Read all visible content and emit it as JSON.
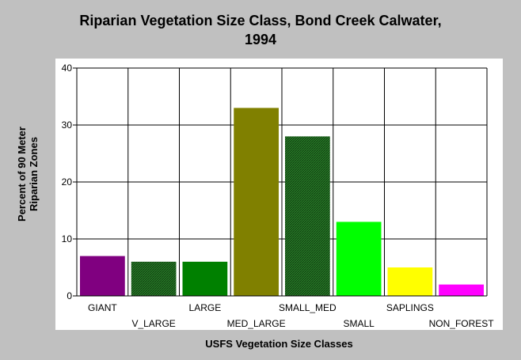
{
  "title_lines": [
    "Riparian Vegetation Size Class, Bond Creek Calwater,",
    "1994"
  ],
  "chart_data": {
    "type": "bar",
    "title": "Riparian Vegetation Size Class, Bond Creek Calwater, 1994",
    "xlabel": "USFS Vegetation Size Classes",
    "ylabel_lines": [
      "Percent of 90 Meter",
      "Riparian Zones"
    ],
    "categories": [
      "GIANT",
      "V_LARGE",
      "LARGE",
      "MED_LARGE",
      "SMALL_MED",
      "SMALL",
      "SAPLINGS",
      "NON_FOREST"
    ],
    "values": [
      7,
      6,
      6,
      33,
      28,
      13,
      5,
      2
    ],
    "colors": [
      "#800080",
      "#1f7a1f",
      "#008000",
      "#808000",
      "#2e8b2e",
      "#00ff00",
      "#ffff00",
      "#ff00ff"
    ],
    "hatched": [
      false,
      true,
      false,
      false,
      true,
      false,
      false,
      false
    ],
    "ylim": [
      0,
      40
    ],
    "yticks": [
      0,
      10,
      20,
      30,
      40
    ],
    "grid": true
  }
}
